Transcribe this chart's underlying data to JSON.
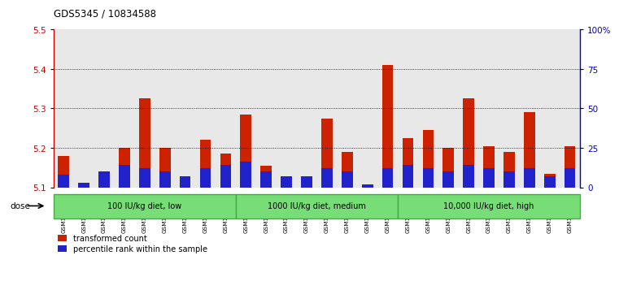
{
  "title": "GDS5345 / 10834588",
  "samples": [
    "GSM1502412",
    "GSM1502413",
    "GSM1502414",
    "GSM1502415",
    "GSM1502416",
    "GSM1502417",
    "GSM1502418",
    "GSM1502419",
    "GSM1502420",
    "GSM1502421",
    "GSM1502422",
    "GSM1502423",
    "GSM1502424",
    "GSM1502425",
    "GSM1502426",
    "GSM1502427",
    "GSM1502428",
    "GSM1502429",
    "GSM1502430",
    "GSM1502431",
    "GSM1502432",
    "GSM1502433",
    "GSM1502434",
    "GSM1502435",
    "GSM1502436",
    "GSM1502437"
  ],
  "red_values": [
    5.18,
    5.11,
    5.135,
    5.2,
    5.325,
    5.2,
    5.1,
    5.22,
    5.185,
    5.285,
    5.155,
    5.12,
    5.11,
    5.275,
    5.19,
    5.105,
    5.41,
    5.225,
    5.245,
    5.2,
    5.325,
    5.205,
    5.19,
    5.29,
    5.135,
    5.205
  ],
  "blue_percentiles": [
    8,
    3,
    10,
    14,
    12,
    10,
    7,
    12,
    14,
    16,
    10,
    7,
    7,
    12,
    10,
    2,
    12,
    14,
    12,
    10,
    14,
    12,
    10,
    12,
    7,
    12
  ],
  "groups": [
    {
      "label": "100 IU/kg diet, low",
      "start": 0,
      "end": 9
    },
    {
      "label": "1000 IU/kg diet, medium",
      "start": 9,
      "end": 17
    },
    {
      "label": "10,000 IU/kg diet, high",
      "start": 17,
      "end": 26
    }
  ],
  "ylim_left": [
    5.1,
    5.5
  ],
  "ylim_right": [
    0,
    100
  ],
  "yticks_left": [
    5.1,
    5.2,
    5.3,
    5.4,
    5.5
  ],
  "yticks_right": [
    0,
    25,
    50,
    75,
    100
  ],
  "ytick_labels_right": [
    "0",
    "25",
    "50",
    "75",
    "100%"
  ],
  "left_color": "#cc0000",
  "right_color": "#0000bb",
  "bar_red": "#cc2200",
  "bar_blue": "#2222cc",
  "plot_bg": "#e8e8e8",
  "group_color": "#77dd77",
  "group_edge": "#44aa44",
  "dose_label": "dose",
  "legend_red": "transformed count",
  "legend_blue": "percentile rank within the sample",
  "fig_bg": "#ffffff"
}
